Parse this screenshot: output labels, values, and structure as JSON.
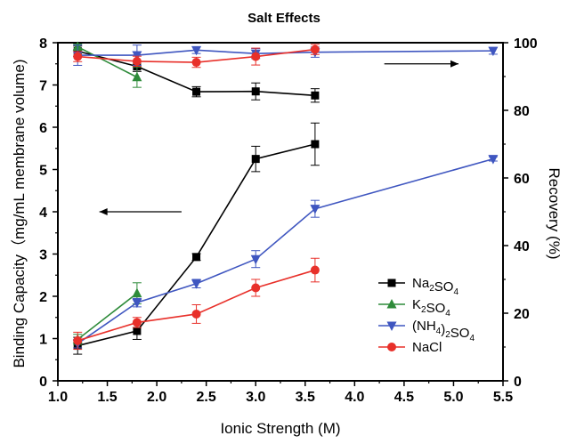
{
  "chart_data": {
    "type": "line",
    "title": "Salt Effects",
    "xlabel": "Ionic Strength (M)",
    "ylabel_left": "Binding Capacity（mg/mL membrane volume)",
    "ylabel_right": "Recovery (%)",
    "xlim": [
      1.0,
      5.5
    ],
    "ylim_left": [
      0,
      8
    ],
    "ylim_right": [
      0,
      100
    ],
    "x_ticks": [
      "1.0",
      "1.5",
      "2.0",
      "2.5",
      "3.0",
      "3.5",
      "4.0",
      "4.5",
      "5.0",
      "5.5"
    ],
    "y_left_ticks": [
      "0",
      "1",
      "2",
      "3",
      "4",
      "5",
      "6",
      "7",
      "8"
    ],
    "y_right_ticks": [
      "0",
      "20",
      "40",
      "60",
      "80",
      "100"
    ],
    "grid": false,
    "legend_position": "center-right",
    "legend": [
      {
        "main": "Na",
        "sub": "2",
        "tail": "SO",
        "sub2": "4",
        "color": "#000000",
        "marker": "square"
      },
      {
        "main": "K",
        "sub": "2",
        "tail": "SO",
        "sub2": "4",
        "color": "#2e8b3a",
        "marker": "triangle-up"
      },
      {
        "main": "(NH",
        "sub": "4",
        "tail": ")",
        "sub2": "2",
        "tail2": "SO",
        "sub3": "4",
        "color": "#3f56c0",
        "marker": "triangle-down"
      },
      {
        "main": "NaCl",
        "color": "#e8302a",
        "marker": "circle"
      }
    ],
    "series": [
      {
        "name": "Na2SO4",
        "measure": "binding_capacity",
        "axis": "left",
        "color": "#000000",
        "marker": "square",
        "x": [
          1.2,
          1.8,
          2.4,
          3.0,
          3.6
        ],
        "y": [
          0.83,
          1.18,
          2.93,
          5.25,
          5.6
        ],
        "err": [
          0.2,
          0.2,
          0.08,
          0.3,
          0.5
        ]
      },
      {
        "name": "K2SO4",
        "measure": "binding_capacity",
        "axis": "left",
        "color": "#2e8b3a",
        "marker": "triangle-up",
        "x": [
          1.2,
          1.8
        ],
        "y": [
          0.98,
          2.07
        ],
        "err": [
          0.12,
          0.25
        ]
      },
      {
        "name": "(NH4)2SO4",
        "measure": "binding_capacity",
        "axis": "left",
        "color": "#3f56c0",
        "marker": "triangle-down",
        "x": [
          1.2,
          1.8,
          2.4,
          3.0,
          3.6,
          5.4
        ],
        "y": [
          0.88,
          1.85,
          2.3,
          2.88,
          4.07,
          5.25
        ],
        "err": [
          0.1,
          0.1,
          0.1,
          0.2,
          0.2,
          0.05
        ]
      },
      {
        "name": "NaCl",
        "measure": "binding_capacity",
        "axis": "left",
        "color": "#e8302a",
        "marker": "circle",
        "x": [
          1.2,
          1.8,
          2.4,
          3.0,
          3.6
        ],
        "y": [
          0.95,
          1.38,
          1.58,
          2.2,
          2.62
        ],
        "err": [
          0.2,
          0.12,
          0.22,
          0.2,
          0.28
        ]
      },
      {
        "name": "Na2SO4",
        "measure": "recovery",
        "axis": "right",
        "color": "#000000",
        "marker": "square",
        "x": [
          1.2,
          1.8,
          2.4,
          3.0,
          3.6
        ],
        "y": [
          97.5,
          93.0,
          85.5,
          85.6,
          84.4
        ],
        "err": [
          1.5,
          1.5,
          1.5,
          2.5,
          2.0
        ]
      },
      {
        "name": "K2SO4",
        "measure": "recovery",
        "axis": "right",
        "color": "#2e8b3a",
        "marker": "triangle-up",
        "x": [
          1.2,
          1.8
        ],
        "y": [
          98.8,
          89.8
        ],
        "err": [
          0.8,
          3.0
        ]
      },
      {
        "name": "(NH4)2SO4",
        "measure": "recovery",
        "axis": "right",
        "color": "#3f56c0",
        "marker": "triangle-down",
        "x": [
          1.2,
          1.8,
          2.4,
          3.0,
          3.6,
          5.4
        ],
        "y": [
          96.3,
          96.3,
          97.8,
          96.8,
          97.2,
          97.6
        ],
        "err": [
          3.0,
          3.0,
          1.0,
          1.5,
          1.5,
          1.0
        ]
      },
      {
        "name": "NaCl",
        "measure": "recovery",
        "axis": "right",
        "color": "#e8302a",
        "marker": "circle",
        "x": [
          1.2,
          1.8,
          2.4,
          3.0,
          3.6
        ],
        "y": [
          95.9,
          94.5,
          94.2,
          95.9,
          98.0
        ],
        "err": [
          1.5,
          1.5,
          1.5,
          2.5,
          1.5
        ]
      }
    ],
    "annotations": [
      {
        "type": "arrow",
        "direction": "left",
        "points_to_axis": "left",
        "x_from": 2.25,
        "x_to": 1.42,
        "y": 4.0
      },
      {
        "type": "arrow",
        "direction": "right",
        "points_to_axis": "right",
        "x_from": 4.3,
        "x_to": 5.05,
        "y": 7.5
      }
    ]
  }
}
